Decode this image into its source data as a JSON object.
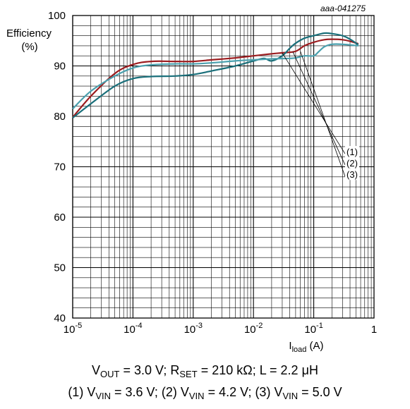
{
  "figure_id": "aaa-041275",
  "caption": {
    "line1": {
      "v": "V",
      "v_sub": "OUT",
      "v_val": " = 3.0 V; R",
      "r_sub": "SET",
      "r_val": " = 210 kΩ; L = 2.2 μH"
    },
    "line2": {
      "p1": "(1) V",
      "s1": "VIN",
      "t1": " = 3.6 V; (2) V",
      "s2": "VIN",
      "t2": " = 4.2 V; (3) V",
      "s3": "VIN",
      "t3": " = 5.0 V"
    }
  },
  "chart_data": {
    "type": "line",
    "x_scale": "log",
    "xlim": [
      1e-05,
      1
    ],
    "ylim": [
      40,
      100
    ],
    "grid": true,
    "ylabel_lines": [
      "Efficiency",
      "(%)"
    ],
    "xlabel": {
      "main": "I",
      "sub": "load",
      "unit": " (A)"
    },
    "x_ticks": [
      {
        "value": 1e-05,
        "base": "10",
        "exp": "-5"
      },
      {
        "value": 0.0001,
        "base": "10",
        "exp": "-4"
      },
      {
        "value": 0.001,
        "base": "10",
        "exp": "-3"
      },
      {
        "value": 0.01,
        "base": "10",
        "exp": "-2"
      },
      {
        "value": 0.1,
        "base": "10",
        "exp": "-1"
      },
      {
        "value": 1,
        "base": "1",
        "exp": ""
      }
    ],
    "y_ticks": [
      40,
      50,
      60,
      70,
      80,
      90,
      100
    ],
    "series": [
      {
        "name": "(1)",
        "color": "#9b1c1f",
        "points": [
          [
            1e-05,
            79.8
          ],
          [
            2e-05,
            84.0
          ],
          [
            5e-05,
            88.5
          ],
          [
            0.0001,
            90.3
          ],
          [
            0.0002,
            90.9
          ],
          [
            0.0005,
            90.9
          ],
          [
            0.001,
            90.9
          ],
          [
            0.002,
            91.2
          ],
          [
            0.005,
            91.6
          ],
          [
            0.01,
            92.0
          ],
          [
            0.02,
            92.4
          ],
          [
            0.03,
            92.6
          ],
          [
            0.05,
            92.9
          ],
          [
            0.07,
            94.0
          ],
          [
            0.1,
            94.7
          ],
          [
            0.15,
            95.2
          ],
          [
            0.2,
            95.3
          ],
          [
            0.3,
            95.2
          ],
          [
            0.4,
            94.9
          ],
          [
            0.55,
            94.4
          ]
        ]
      },
      {
        "name": "(2)",
        "color": "#1a6f7a",
        "points": [
          [
            1e-05,
            79.7
          ],
          [
            2e-05,
            82.5
          ],
          [
            5e-05,
            86.0
          ],
          [
            0.0001,
            87.5
          ],
          [
            0.0002,
            87.9
          ],
          [
            0.0005,
            88.0
          ],
          [
            0.001,
            88.3
          ],
          [
            0.002,
            89.0
          ],
          [
            0.005,
            90.0
          ],
          [
            0.01,
            91.0
          ],
          [
            0.015,
            91.5
          ],
          [
            0.02,
            91.0
          ],
          [
            0.03,
            92.0
          ],
          [
            0.04,
            93.5
          ],
          [
            0.05,
            94.5
          ],
          [
            0.07,
            95.5
          ],
          [
            0.1,
            96.0
          ],
          [
            0.15,
            96.5
          ],
          [
            0.2,
            96.4
          ],
          [
            0.3,
            96.0
          ],
          [
            0.4,
            95.3
          ],
          [
            0.55,
            94.2
          ]
        ]
      },
      {
        "name": "(3)",
        "color": "#4aa0ae",
        "points": [
          [
            1e-05,
            81.5
          ],
          [
            2e-05,
            85.0
          ],
          [
            5e-05,
            88.0
          ],
          [
            0.0001,
            89.6
          ],
          [
            0.0002,
            90.2
          ],
          [
            0.0005,
            90.4
          ],
          [
            0.001,
            90.4
          ],
          [
            0.002,
            90.6
          ],
          [
            0.005,
            91.0
          ],
          [
            0.01,
            91.2
          ],
          [
            0.02,
            91.4
          ],
          [
            0.04,
            91.5
          ],
          [
            0.05,
            91.6
          ],
          [
            0.07,
            92.0
          ],
          [
            0.1,
            92.0
          ],
          [
            0.12,
            92.8
          ],
          [
            0.15,
            93.8
          ],
          [
            0.2,
            94.3
          ],
          [
            0.3,
            94.3
          ],
          [
            0.55,
            94.0
          ]
        ]
      }
    ],
    "annotations": [
      {
        "label": "(1)",
        "target": [
          0.03,
          92.6
        ],
        "label_y": 72.3
      },
      {
        "label": "(2)",
        "target": [
          0.045,
          92.8
        ],
        "label_y": 70.1
      },
      {
        "label": "(3)",
        "target": [
          0.06,
          92.9
        ],
        "label_y": 67.8
      }
    ]
  }
}
